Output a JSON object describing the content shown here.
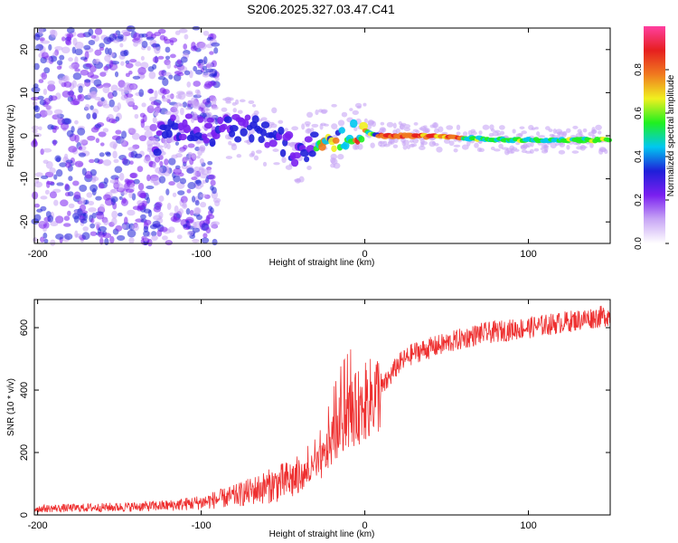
{
  "title": "S206.2025.327.03.47.C41",
  "chart_data": [
    {
      "type": "heatmap",
      "xlabel": "Height of straight line (km)",
      "ylabel": "Frequency (Hz)",
      "xlim": [
        -202,
        150
      ],
      "ylim": [
        -25,
        25
      ],
      "xticks": [
        -200,
        -100,
        0,
        100
      ],
      "yticks": [
        -20,
        -10,
        0,
        10,
        20
      ],
      "colorbar": {
        "label": "Normalized spectral amplitude",
        "range": [
          0,
          1
        ],
        "ticks": [
          "0.0",
          "0.2",
          "0.4",
          "0.6",
          "0.8"
        ],
        "colors": [
          "#ffffff",
          "#c8a6f5",
          "#7a1ff0",
          "#1f1fd9",
          "#00c8f0",
          "#1ff01f",
          "#f0f01f",
          "#f07a1f",
          "#e61f1f",
          "#ff3fa0"
        ]
      },
      "ridge": [
        {
          "x": -125,
          "y": 3
        },
        {
          "x": -100,
          "y": 1
        },
        {
          "x": -80,
          "y": 2
        },
        {
          "x": -70,
          "y": 2
        },
        {
          "x": -60,
          "y": 0
        },
        {
          "x": -50,
          "y": -2
        },
        {
          "x": -40,
          "y": -4
        },
        {
          "x": -30,
          "y": -1
        },
        {
          "x": -20,
          "y": 0
        },
        {
          "x": -10,
          "y": 0
        },
        {
          "x": 0,
          "y": 1
        },
        {
          "x": 10,
          "y": 0
        },
        {
          "x": 30,
          "y": 0
        },
        {
          "x": 60,
          "y": -0.5
        },
        {
          "x": 90,
          "y": -1
        },
        {
          "x": 120,
          "y": -1
        },
        {
          "x": 150,
          "y": -1
        }
      ]
    },
    {
      "type": "line",
      "xlabel": "Height of straight line (km)",
      "ylabel": "SNR (10 * v/v)",
      "xlim": [
        -202,
        150
      ],
      "ylim": [
        0,
        690
      ],
      "xticks": [
        -200,
        -100,
        0,
        100
      ],
      "yticks": [
        0,
        200,
        400,
        600
      ],
      "series": [
        {
          "name": "SNR",
          "color": "#ee3030",
          "trend_x": [
            -202,
            -150,
            -120,
            -100,
            -80,
            -60,
            -40,
            -30,
            -25,
            -20,
            -15,
            -10,
            -5,
            0,
            10,
            20,
            30,
            50,
            70,
            100,
            150
          ],
          "trend_y": [
            20,
            25,
            30,
            40,
            60,
            90,
            120,
            150,
            180,
            240,
            290,
            320,
            340,
            360,
            400,
            480,
            520,
            550,
            580,
            600,
            640
          ]
        }
      ]
    }
  ]
}
